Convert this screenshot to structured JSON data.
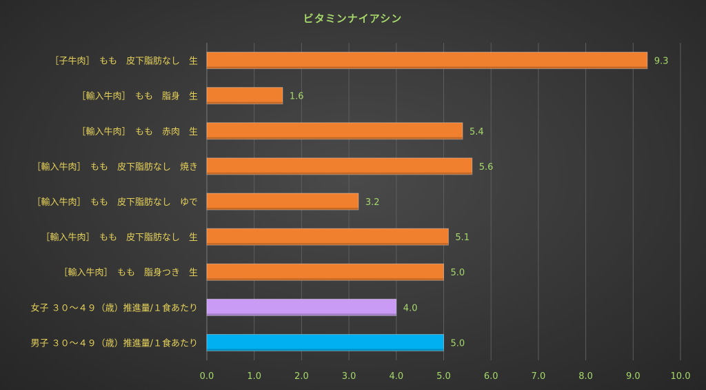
{
  "chart_data": {
    "type": "bar",
    "orientation": "horizontal",
    "title": "ビタミンナイアシン",
    "categories": [
      "［子牛肉］　もも　皮下脂肪なし　生",
      "［輸入牛肉］　もも　脂身　生",
      "［輸入牛肉］　もも　赤肉　生",
      "［輸入牛肉］　もも　皮下脂肪なし　焼き",
      "［輸入牛肉］　もも　皮下脂肪なし　ゆで",
      "［輸入牛肉］　もも　皮下脂肪なし　生",
      "［輸入牛肉］　もも　脂身つき　生",
      "女子 ３０～４９（歳）推進量/１食あたり",
      "男子 ３０～４９（歳）推進量/１食あたり"
    ],
    "values": [
      9.3,
      1.6,
      5.4,
      5.6,
      3.2,
      5.1,
      5.0,
      4.0,
      5.0
    ],
    "data_labels": [
      "9.3",
      "1.6",
      "5.4",
      "5.6",
      "3.2",
      "5.1",
      "5.0",
      "4.0",
      "5.0"
    ],
    "bar_colors": [
      "#f07f2e",
      "#f07f2e",
      "#f07f2e",
      "#f07f2e",
      "#f07f2e",
      "#f07f2e",
      "#f07f2e",
      "#c99bf5",
      "#00b0f0"
    ],
    "xlim": [
      0,
      10
    ],
    "xticks": [
      "0.0",
      "1.0",
      "2.0",
      "3.0",
      "4.0",
      "5.0",
      "6.0",
      "7.0",
      "8.0",
      "9.0",
      "10.0"
    ],
    "grid": true,
    "legend": "none"
  }
}
